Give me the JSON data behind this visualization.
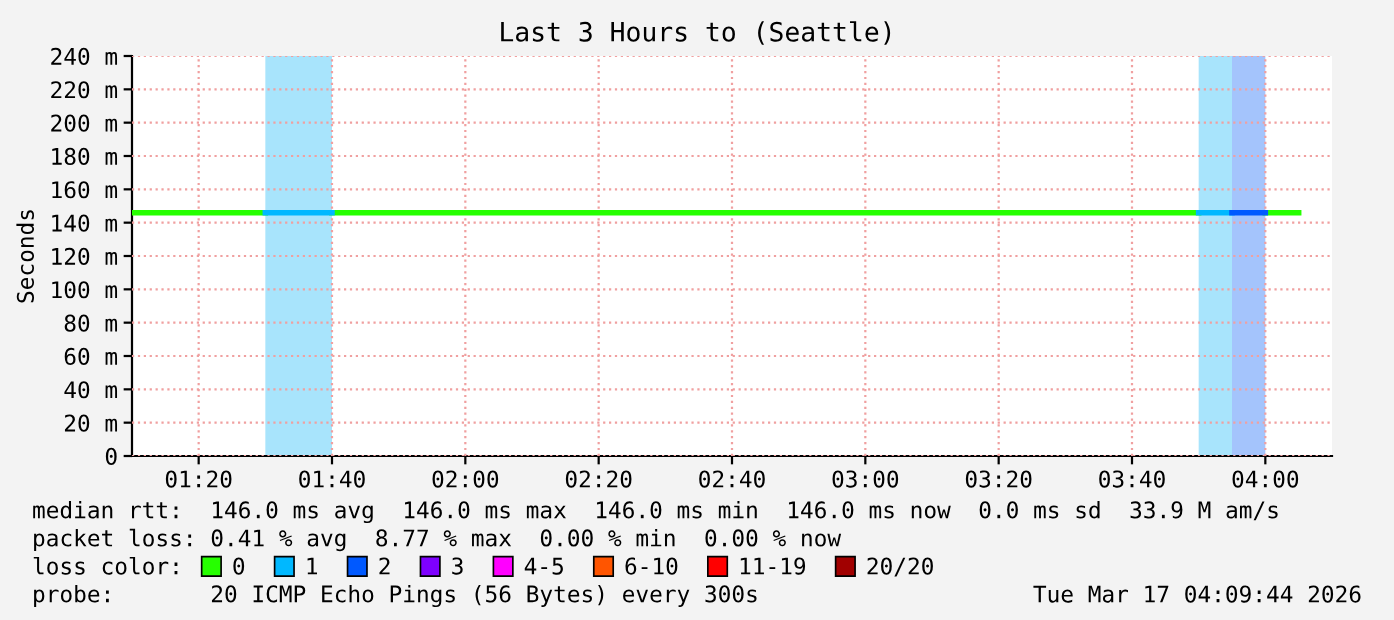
{
  "chart_data": {
    "type": "line",
    "title": "Last 3 Hours to (Seattle)",
    "ylabel": "Seconds",
    "legend_title": "loss color:",
    "legend": "bottom",
    "grid": true,
    "marker": "none",
    "line_style": "solid",
    "x": [
      "2026-03-17T01:10",
      "2026-03-17T01:15",
      "2026-03-17T01:20",
      "2026-03-17T01:25",
      "2026-03-17T01:30",
      "2026-03-17T01:35",
      "2026-03-17T01:40",
      "2026-03-17T01:45",
      "2026-03-17T01:50",
      "2026-03-17T01:55",
      "2026-03-17T02:00",
      "2026-03-17T02:05",
      "2026-03-17T02:10",
      "2026-03-17T02:15",
      "2026-03-17T02:20",
      "2026-03-17T02:25",
      "2026-03-17T02:30",
      "2026-03-17T02:35",
      "2026-03-17T02:40",
      "2026-03-17T02:45",
      "2026-03-17T02:50",
      "2026-03-17T02:55",
      "2026-03-17T03:00",
      "2026-03-17T03:05",
      "2026-03-17T03:10",
      "2026-03-17T03:15",
      "2026-03-17T03:20",
      "2026-03-17T03:25",
      "2026-03-17T03:30",
      "2026-03-17T03:35",
      "2026-03-17T03:40",
      "2026-03-17T03:45",
      "2026-03-17T03:50",
      "2026-03-17T03:55",
      "2026-03-17T04:00",
      "2026-03-17T04:05"
    ],
    "series": [
      {
        "name": "0",
        "color": "#26ff00",
        "values": [
          146,
          146,
          146,
          146,
          146,
          null,
          146,
          146,
          146,
          146,
          146,
          146,
          146,
          146,
          146,
          146,
          146,
          146,
          146,
          146,
          146,
          146,
          146,
          146,
          146,
          146,
          146,
          146,
          146,
          146,
          146,
          146,
          146,
          null,
          146,
          146
        ]
      },
      {
        "name": "1",
        "color": "#00b8ff",
        "values": [
          null,
          null,
          null,
          null,
          146,
          146,
          146,
          null,
          null,
          null,
          null,
          null,
          null,
          null,
          null,
          null,
          null,
          null,
          null,
          null,
          null,
          null,
          null,
          null,
          null,
          null,
          null,
          null,
          null,
          null,
          null,
          null,
          146,
          146,
          null,
          null
        ]
      },
      {
        "name": "2",
        "color": "#0059ff",
        "values": [
          null,
          null,
          null,
          null,
          null,
          null,
          null,
          null,
          null,
          null,
          null,
          null,
          null,
          null,
          null,
          null,
          null,
          null,
          null,
          null,
          null,
          null,
          null,
          null,
          null,
          null,
          null,
          null,
          null,
          null,
          null,
          null,
          null,
          146,
          146,
          null
        ]
      },
      {
        "name": "3",
        "color": "#7e00ff",
        "values": [
          null,
          null,
          null,
          null,
          null,
          null,
          null,
          null,
          null,
          null,
          null,
          null,
          null,
          null,
          null,
          null,
          null,
          null,
          null,
          null,
          null,
          null,
          null,
          null,
          null,
          null,
          null,
          null,
          null,
          null,
          null,
          null,
          null,
          null,
          null,
          null
        ]
      },
      {
        "name": "4-5",
        "color": "#ff00ff",
        "values": [
          null,
          null,
          null,
          null,
          null,
          null,
          null,
          null,
          null,
          null,
          null,
          null,
          null,
          null,
          null,
          null,
          null,
          null,
          null,
          null,
          null,
          null,
          null,
          null,
          null,
          null,
          null,
          null,
          null,
          null,
          null,
          null,
          null,
          null,
          null,
          null
        ]
      },
      {
        "name": "6-10",
        "color": "#ff5500",
        "values": [
          null,
          null,
          null,
          null,
          null,
          null,
          null,
          null,
          null,
          null,
          null,
          null,
          null,
          null,
          null,
          null,
          null,
          null,
          null,
          null,
          null,
          null,
          null,
          null,
          null,
          null,
          null,
          null,
          null,
          null,
          null,
          null,
          null,
          null,
          null,
          null
        ]
      },
      {
        "name": "11-19",
        "color": "#ff0000",
        "values": [
          null,
          null,
          null,
          null,
          null,
          null,
          null,
          null,
          null,
          null,
          null,
          null,
          null,
          null,
          null,
          null,
          null,
          null,
          null,
          null,
          null,
          null,
          null,
          null,
          null,
          null,
          null,
          null,
          null,
          null,
          null,
          null,
          null,
          null,
          null,
          null
        ]
      },
      {
        "name": "20/20",
        "color": "#a10000",
        "values": [
          null,
          null,
          null,
          null,
          null,
          null,
          null,
          null,
          null,
          null,
          null,
          null,
          null,
          null,
          null,
          null,
          null,
          null,
          null,
          null,
          null,
          null,
          null,
          null,
          null,
          null,
          null,
          null,
          null,
          null,
          null,
          null,
          null,
          null,
          null,
          null
        ]
      }
    ],
    "bands": [
      {
        "axis": "x",
        "from": "2026-03-17T01:30",
        "to": "2026-03-17T01:40",
        "color": "#a8e4fc"
      },
      {
        "axis": "x",
        "from": "2026-03-17T03:50",
        "to": "2026-03-17T03:55",
        "color": "#a8e4fc"
      },
      {
        "axis": "x",
        "from": "2026-03-17T03:55",
        "to": "2026-03-17T04:00",
        "color": "#a4c4fc"
      }
    ],
    "xlim": [
      "2026-03-17T01:10",
      "2026-03-17T04:10"
    ],
    "xticks": [
      {
        "value": "2026-03-17T01:20",
        "label": "01:20"
      },
      {
        "value": "2026-03-17T01:40",
        "label": "01:40"
      },
      {
        "value": "2026-03-17T02:00",
        "label": "02:00"
      },
      {
        "value": "2026-03-17T02:20",
        "label": "02:20"
      },
      {
        "value": "2026-03-17T02:40",
        "label": "02:40"
      },
      {
        "value": "2026-03-17T03:00",
        "label": "03:00"
      },
      {
        "value": "2026-03-17T03:20",
        "label": "03:20"
      },
      {
        "value": "2026-03-17T03:40",
        "label": "03:40"
      },
      {
        "value": "2026-03-17T04:00",
        "label": "04:00"
      }
    ],
    "ylim": [
      0,
      240
    ],
    "yticks": [
      0,
      {
        "value": 20,
        "label": "20 m"
      },
      {
        "value": 40,
        "label": "40 m"
      },
      {
        "value": 60,
        "label": "60 m"
      },
      {
        "value": 80,
        "label": "80 m"
      },
      {
        "value": 100,
        "label": "100 m"
      },
      {
        "value": 120,
        "label": "120 m"
      },
      {
        "value": 140,
        "label": "140 m"
      },
      {
        "value": 160,
        "label": "160 m"
      },
      {
        "value": 180,
        "label": "180 m"
      },
      {
        "value": 200,
        "label": "200 m"
      },
      {
        "value": 220,
        "label": "220 m"
      },
      {
        "value": 240,
        "label": "240 m"
      }
    ],
    "annotations": [
      "median rtt:  146.0 ms avg  146.0 ms max  146.0 ms min  146.0 ms now  0.0 ms sd  33.9 M am/s",
      "packet loss: 0.41 % avg  8.77 % max  0.00 % min  0.00 % now",
      "probe:       20 ICMP Echo Pings (56 Bytes) every 300s",
      "Tue Mar 17 04:09:44 2026"
    ]
  }
}
